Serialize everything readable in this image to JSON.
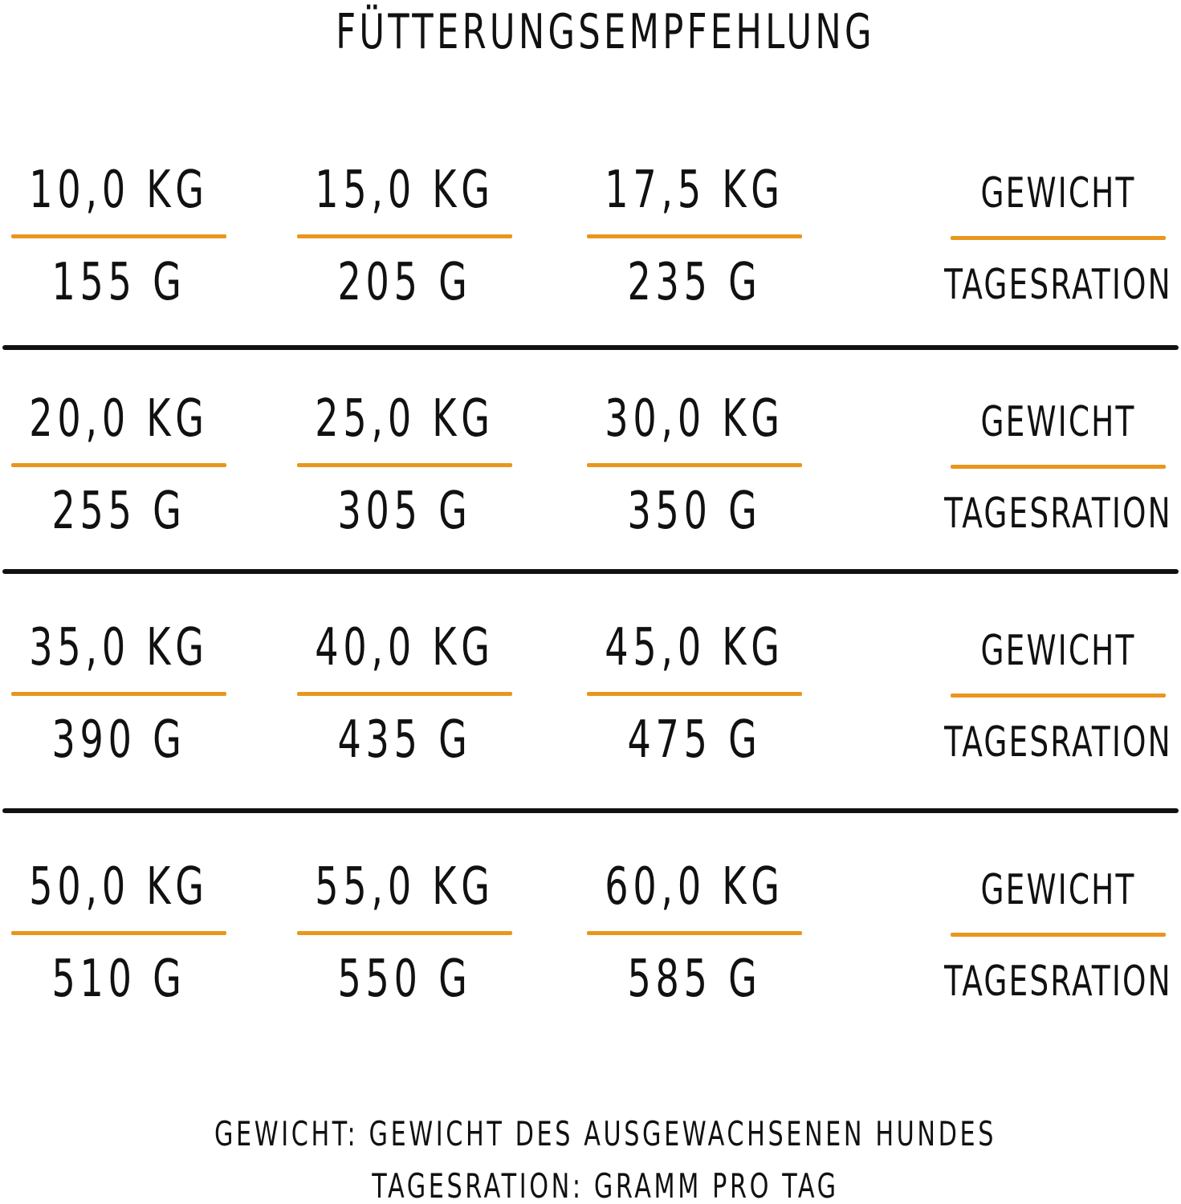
{
  "title": "FÜTTERUNGSEMPFEHLUNG",
  "rows": [
    {
      "cells": [
        {
          "weight": "10,0 KG",
          "ration": "155 G"
        },
        {
          "weight": "15,0 KG",
          "ration": "205 G"
        },
        {
          "weight": "17,5 KG",
          "ration": "235 G"
        }
      ],
      "weight_label": "GEWICHT",
      "ration_label": "TAGESRATION"
    },
    {
      "cells": [
        {
          "weight": "20,0 KG",
          "ration": "255 G"
        },
        {
          "weight": "25,0 KG",
          "ration": "305 G"
        },
        {
          "weight": "30,0 KG",
          "ration": "350 G"
        }
      ],
      "weight_label": "GEWICHT",
      "ration_label": "TAGESRATION"
    },
    {
      "cells": [
        {
          "weight": "35,0 KG",
          "ration": "390 G"
        },
        {
          "weight": "40,0 KG",
          "ration": "435 G"
        },
        {
          "weight": "45,0 KG",
          "ration": "475 G"
        }
      ],
      "weight_label": "GEWICHT",
      "ration_label": "TAGESRATION"
    },
    {
      "cells": [
        {
          "weight": "50,0 KG",
          "ration": "510 G"
        },
        {
          "weight": "55,0 KG",
          "ration": "550 G"
        },
        {
          "weight": "60,0 KG",
          "ration": "585 G"
        }
      ],
      "weight_label": "GEWICHT",
      "ration_label": "TAGESRATION"
    }
  ],
  "footer": [
    "GEWICHT: GEWICHT DES AUSGEWACHSENEN HUNDES",
    "TAGESRATION: GRAMM PRO TAG"
  ]
}
